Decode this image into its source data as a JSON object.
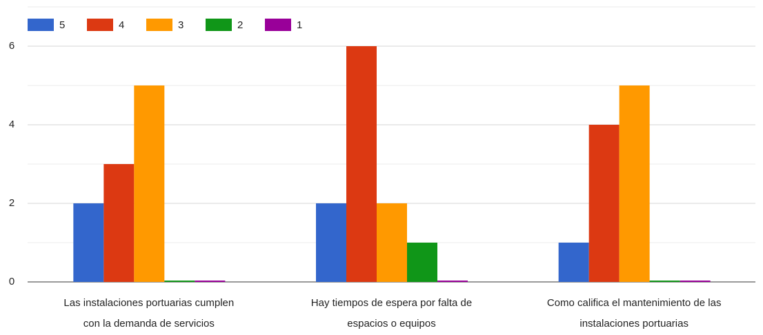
{
  "chart_data": {
    "type": "bar",
    "categories": [
      [
        "Las instalaciones portuarias cumplen",
        "con la demanda de servicios"
      ],
      [
        "Hay tiempos de espera por falta de",
        "espacios o equipos"
      ],
      [
        "Como califica el mantenimiento de las",
        "instalaciones portuarias"
      ]
    ],
    "series": [
      {
        "name": "5",
        "color": "#3366cc",
        "values": [
          2,
          2,
          1
        ]
      },
      {
        "name": "4",
        "color": "#dc3912",
        "values": [
          3,
          6,
          4
        ]
      },
      {
        "name": "3",
        "color": "#ff9900",
        "values": [
          5,
          2,
          5
        ]
      },
      {
        "name": "2",
        "color": "#109618",
        "values": [
          0,
          1,
          0
        ]
      },
      {
        "name": "1",
        "color": "#990099",
        "values": [
          0,
          0,
          0
        ]
      }
    ],
    "ylim": [
      0,
      7
    ],
    "yticks": [
      0,
      2,
      4,
      6
    ],
    "minor_yticks": [
      1,
      3,
      5,
      7
    ],
    "grid": true,
    "legend": "top-left"
  }
}
